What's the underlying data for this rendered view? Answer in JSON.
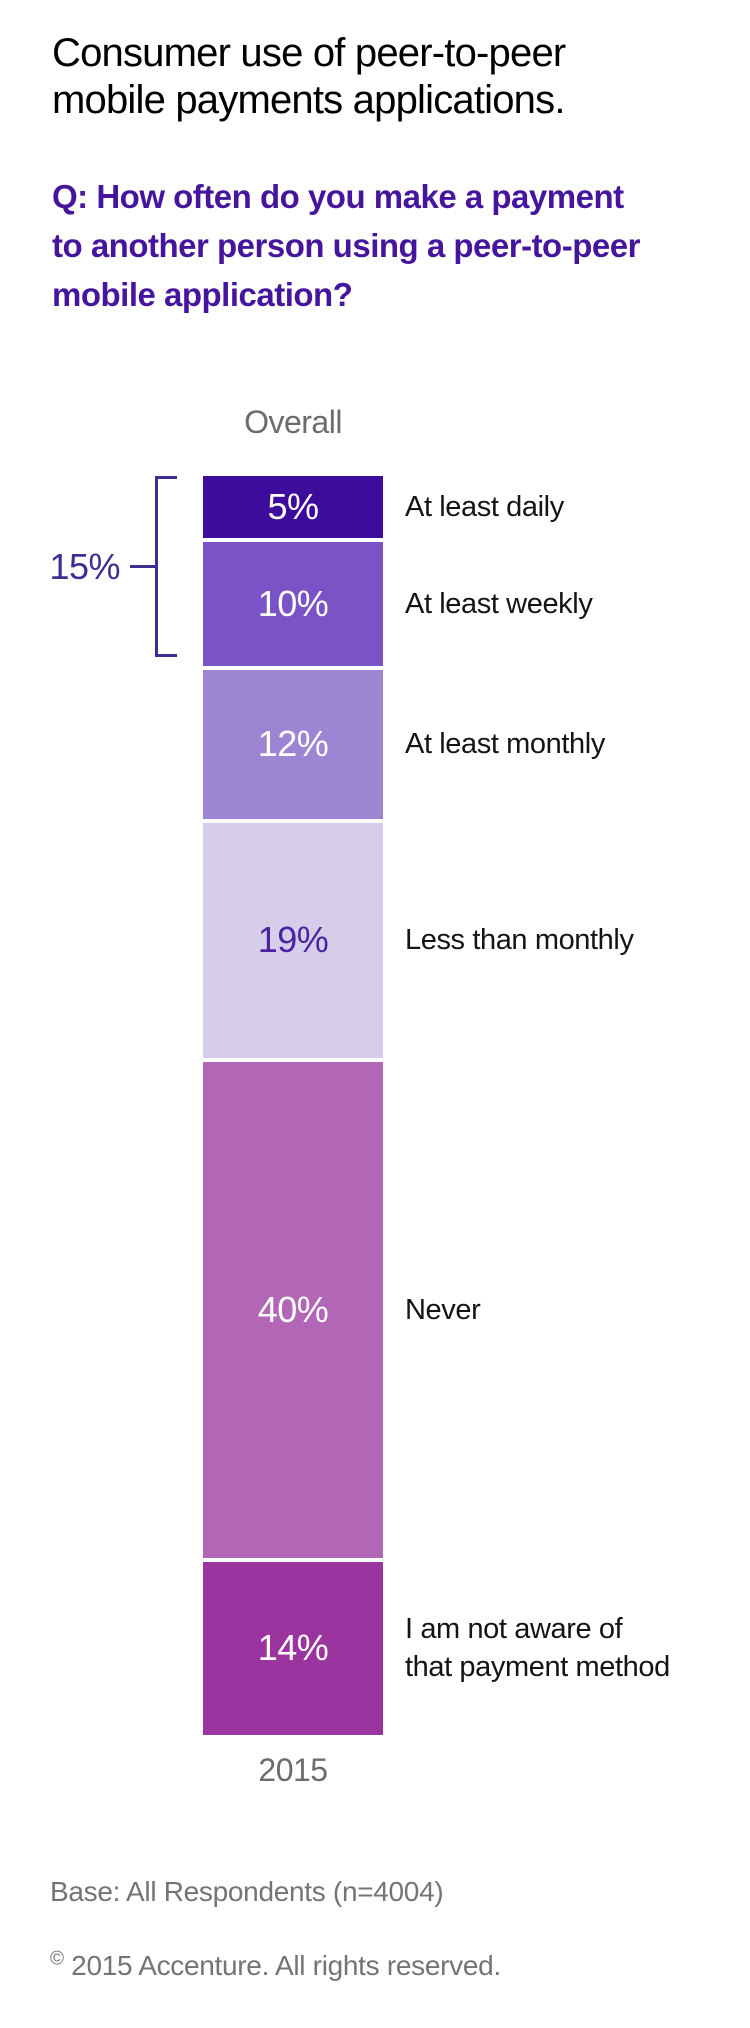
{
  "page": {
    "background": "#ffffff"
  },
  "header": {
    "title": "Consumer use of peer-to-peer\nmobile payments applications.",
    "title_color": "#000000",
    "question": "Q: How often do you make a payment\nto another person using a peer-to-peer\nmobile application?",
    "question_color": "#45169D"
  },
  "chart_data": {
    "type": "bar",
    "subtype": "single-column-stacked-vertical",
    "title": "Consumer use of peer-to-peer mobile payments applications.",
    "column_header": "Overall",
    "x_axis_label": "2015",
    "unit": "%",
    "categories": [
      "At least daily",
      "At least weekly",
      "At least monthly",
      "Less than monthly",
      "Never",
      "I am not aware of that payment method"
    ],
    "values": [
      5,
      10,
      12,
      19,
      40,
      14
    ],
    "segments": [
      {
        "id": "at-least-daily",
        "label": "At least daily",
        "value": 5,
        "color": "#3D0C9D",
        "value_color": "#FFFFFF"
      },
      {
        "id": "at-least-weekly",
        "label": "At least weekly",
        "value": 10,
        "color": "#7A54C6",
        "value_color": "#FFFFFF"
      },
      {
        "id": "at-least-monthly",
        "label": "At least monthly",
        "value": 12,
        "color": "#9D85D4",
        "value_color": "#FFFFFF"
      },
      {
        "id": "less-than-monthly",
        "label": "Less than monthly",
        "value": 19,
        "color": "#D6CDEA",
        "value_color": "#4A23A3"
      },
      {
        "id": "never",
        "label": "Never",
        "value": 40,
        "color": "#B266B6",
        "value_color": "#FFFFFF"
      },
      {
        "id": "not-aware",
        "label": "I am not aware of\nthat payment method",
        "value": 14,
        "color": "#9C34A0",
        "value_color": "#FFFFFF"
      }
    ],
    "bracket": {
      "label": "15%",
      "value": 15,
      "color": "#3D2E94",
      "covers": [
        "At least daily",
        "At least weekly"
      ]
    },
    "gridlines": false,
    "legend": "none"
  },
  "footer": {
    "base_note": "Base: All Respondents (n=4004)",
    "copyright_symbol": "©",
    "copyright_text": " 2015 Accenture. All rights reserved.",
    "text_color": "#747474"
  }
}
